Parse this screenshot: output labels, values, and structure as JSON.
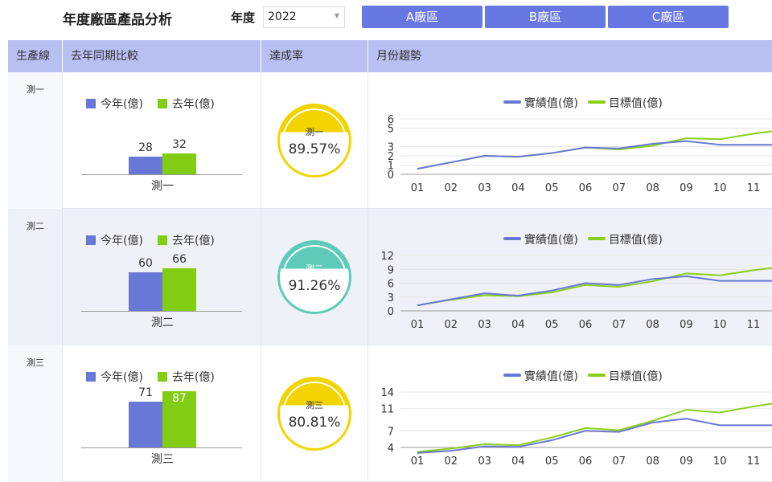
{
  "header": {
    "title": "年度廠區產品分析",
    "year_label": "年度",
    "year_value": "2022",
    "plant_buttons": [
      "A廠區",
      "B廠區",
      "C廠區"
    ]
  },
  "table": {
    "columns": [
      "生產線",
      "去年同期比較",
      "達成率",
      "月份趨勢"
    ]
  },
  "colors": {
    "accent": "#6878e3",
    "this_year": "#6878d6",
    "last_year": "#83cc14",
    "actual_line": "#6878d6",
    "target_line": "#8ccf1a",
    "gauge_yellow": "#f3d300",
    "gauge_teal": "#5ecab8"
  },
  "legend": {
    "this_year": "今年(億)",
    "last_year": "去年(億)",
    "actual": "實績值(億)",
    "target": "目標值(億)"
  },
  "rows": [
    {
      "name": "測一",
      "this_year": 28,
      "last_year": 32,
      "category": "測一",
      "rate_name": "測一",
      "rate": "89.57%",
      "gauge_color": "#f3d300",
      "chart_data": {
        "type": "line",
        "x": [
          "01",
          "02",
          "03",
          "04",
          "05",
          "06",
          "07",
          "08",
          "09",
          "10",
          "11"
        ],
        "y_ticks": [
          0,
          1,
          2,
          3,
          5,
          6
        ],
        "ylim": [
          0,
          6
        ],
        "series": [
          {
            "name": "實績值(億)",
            "values": [
              0.6,
              1.3,
              2.0,
              1.9,
              2.3,
              2.9,
              2.8,
              3.3,
              3.6,
              3.2,
              3.2
            ]
          },
          {
            "name": "目標值(億)",
            "values": [
              0.6,
              1.3,
              2.0,
              1.9,
              2.3,
              2.9,
              2.7,
              3.1,
              3.9,
              3.8,
              4.4
            ]
          }
        ]
      }
    },
    {
      "name": "測二",
      "this_year": 60,
      "last_year": 66,
      "category": "測二",
      "rate_name": "測二",
      "rate": "91.26%",
      "gauge_color": "#5ecab8",
      "chart_data": {
        "type": "line",
        "x": [
          "01",
          "02",
          "03",
          "04",
          "05",
          "06",
          "07",
          "08",
          "09",
          "10",
          "11"
        ],
        "y_ticks": [
          0,
          3,
          6,
          9,
          12
        ],
        "ylim": [
          0,
          12
        ],
        "series": [
          {
            "name": "實績值(億)",
            "values": [
              1.2,
              2.5,
              3.8,
              3.3,
              4.4,
              6.0,
              5.6,
              6.9,
              7.5,
              6.5,
              6.5
            ]
          },
          {
            "name": "目標值(億)",
            "values": [
              1.2,
              2.4,
              3.4,
              3.2,
              4.0,
              5.6,
              5.2,
              6.4,
              8.1,
              7.7,
              8.8
            ]
          }
        ]
      }
    },
    {
      "name": "測三",
      "this_year": 71,
      "last_year": 87,
      "category": "測三",
      "rate_name": "測三",
      "rate": "80.81%",
      "gauge_color": "#f3d300",
      "chart_data": {
        "type": "line",
        "x": [
          "01",
          "02",
          "03",
          "04",
          "05",
          "06",
          "07",
          "08",
          "09",
          "10",
          "11"
        ],
        "y_ticks": [
          4,
          7,
          11,
          14
        ],
        "ylim": [
          4,
          14
        ],
        "series": [
          {
            "name": "實績值(億)",
            "values": [
              3.0,
              3.4,
              4.2,
              4.1,
              5.3,
              7.0,
              6.8,
              8.5,
              9.2,
              8.0,
              8.0
            ]
          },
          {
            "name": "目標值(億)",
            "values": [
              3.2,
              3.8,
              4.6,
              4.4,
              5.8,
              7.5,
              7.1,
              8.8,
              10.8,
              10.3,
              11.4
            ]
          }
        ]
      }
    }
  ]
}
